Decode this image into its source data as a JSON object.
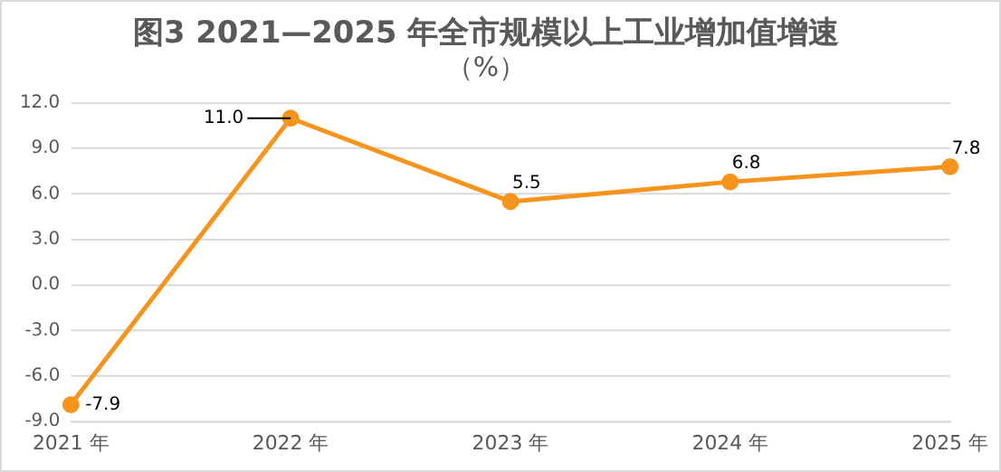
{
  "chart_data": {
    "type": "line",
    "title": "图3 2021—2025 年全市规模以上工业增加值增速",
    "subtitle": "（%）",
    "categories": [
      "2021 年",
      "2022 年",
      "2023 年",
      "2024 年",
      "2025 年"
    ],
    "series": [
      {
        "color": "#f7941d",
        "values": [
          -7.9,
          11.0,
          5.5,
          6.8,
          7.8
        ]
      }
    ],
    "value_labels": [
      "-7.9",
      "11.0",
      "5.5",
      "6.8",
      "7.8"
    ],
    "ylim": [
      -9,
      12
    ],
    "yticks": [
      {
        "value": -9,
        "label": "-9.0"
      },
      {
        "value": -6,
        "label": "-6.0"
      },
      {
        "value": -3,
        "label": "-3.0"
      },
      {
        "value": 0,
        "label": "0.0"
      },
      {
        "value": 3,
        "label": "3.0"
      },
      {
        "value": 6,
        "label": "6.0"
      },
      {
        "value": 9,
        "label": "9.0"
      },
      {
        "value": 12,
        "label": "12.0"
      }
    ],
    "grid": "y",
    "marker": "circle",
    "line_style": "solid",
    "legend": false
  }
}
